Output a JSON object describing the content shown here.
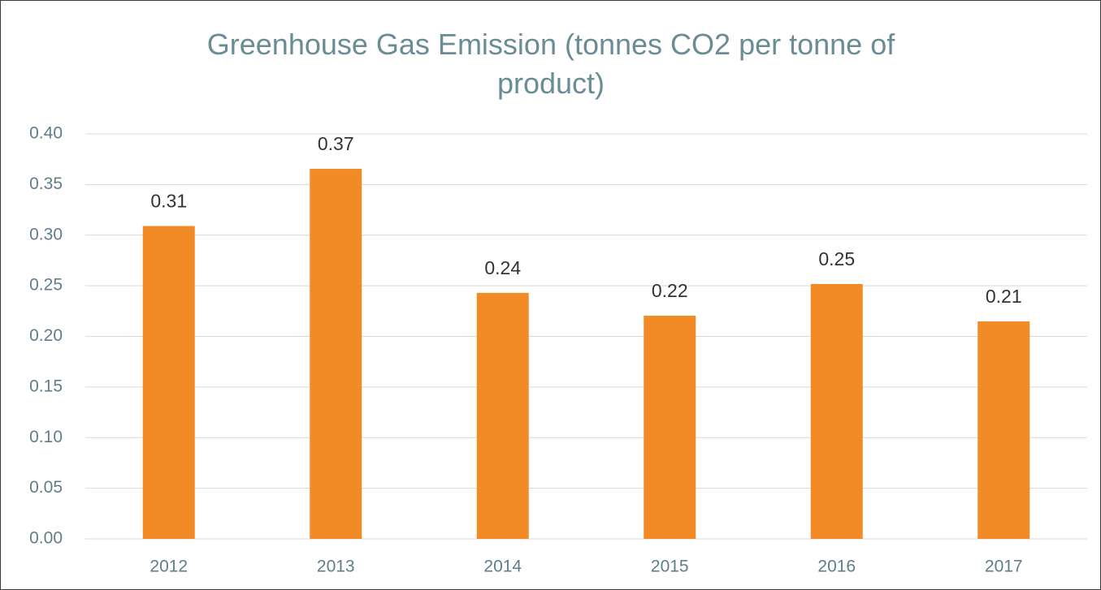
{
  "chart_data": {
    "type": "bar",
    "title": "Greenhouse Gas Emission (tonnes CO2 per tonne of product)",
    "categories": [
      "2012",
      "2013",
      "2014",
      "2015",
      "2016",
      "2017"
    ],
    "values": [
      0.309,
      0.3655,
      0.243,
      0.2204,
      0.2517,
      0.2148
    ],
    "value_labels": [
      "0.31",
      "0.37",
      "0.24",
      "0.22",
      "0.25",
      "0.21"
    ],
    "color": "#f28a26",
    "ylim": [
      0,
      0.4
    ],
    "yticks": [
      {
        "value": 0,
        "label": "0.00"
      },
      {
        "value": 0.05,
        "label": "0.05"
      },
      {
        "value": 0.1,
        "label": "0.10"
      },
      {
        "value": 0.15,
        "label": "0.15"
      },
      {
        "value": 0.2,
        "label": "0.20"
      },
      {
        "value": 0.25,
        "label": "0.25"
      },
      {
        "value": 0.3,
        "label": "0.30"
      },
      {
        "value": 0.35,
        "label": "0.35"
      },
      {
        "value": 0.4,
        "label": "0.40"
      }
    ],
    "grid": true
  }
}
